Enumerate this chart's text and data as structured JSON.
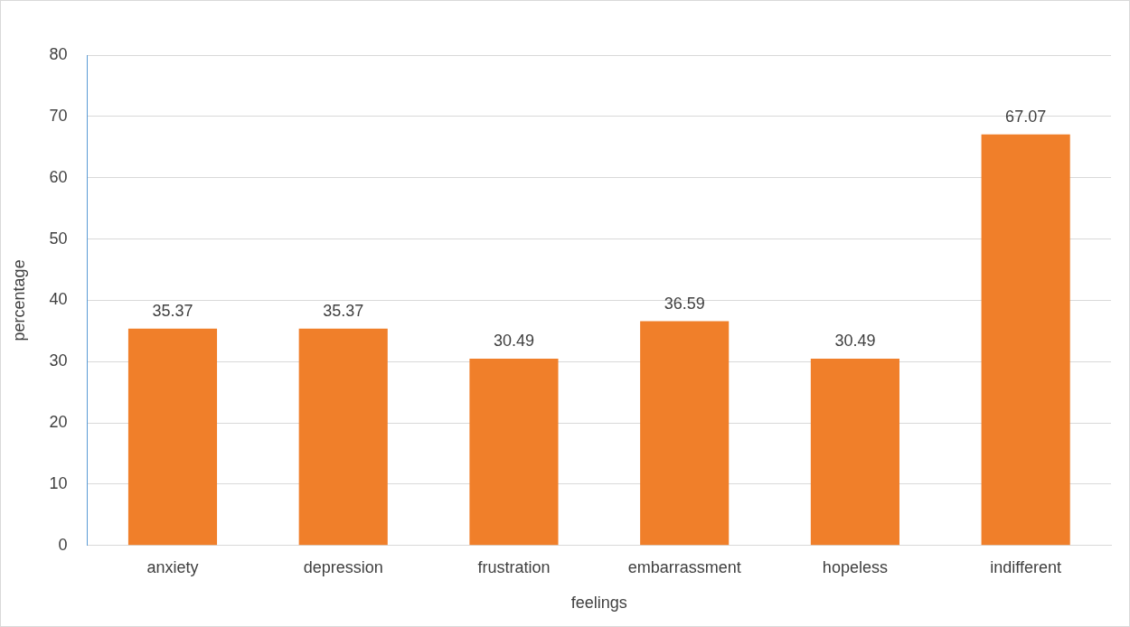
{
  "chart_data": {
    "type": "bar",
    "xlabel": "feelings",
    "ylabel": "percentage",
    "categories": [
      "anxiety",
      "depression",
      "frustration",
      "embarrassment",
      "hopeless",
      "indifferent"
    ],
    "values": [
      35.37,
      35.37,
      30.49,
      36.59,
      30.49,
      67.07
    ],
    "color": "#f07f2a",
    "ylim": [
      0,
      80
    ],
    "yticks": [
      0,
      10,
      20,
      30,
      40,
      50,
      60,
      70,
      80
    ],
    "grid": "y",
    "data_labels": true,
    "legend": false
  }
}
